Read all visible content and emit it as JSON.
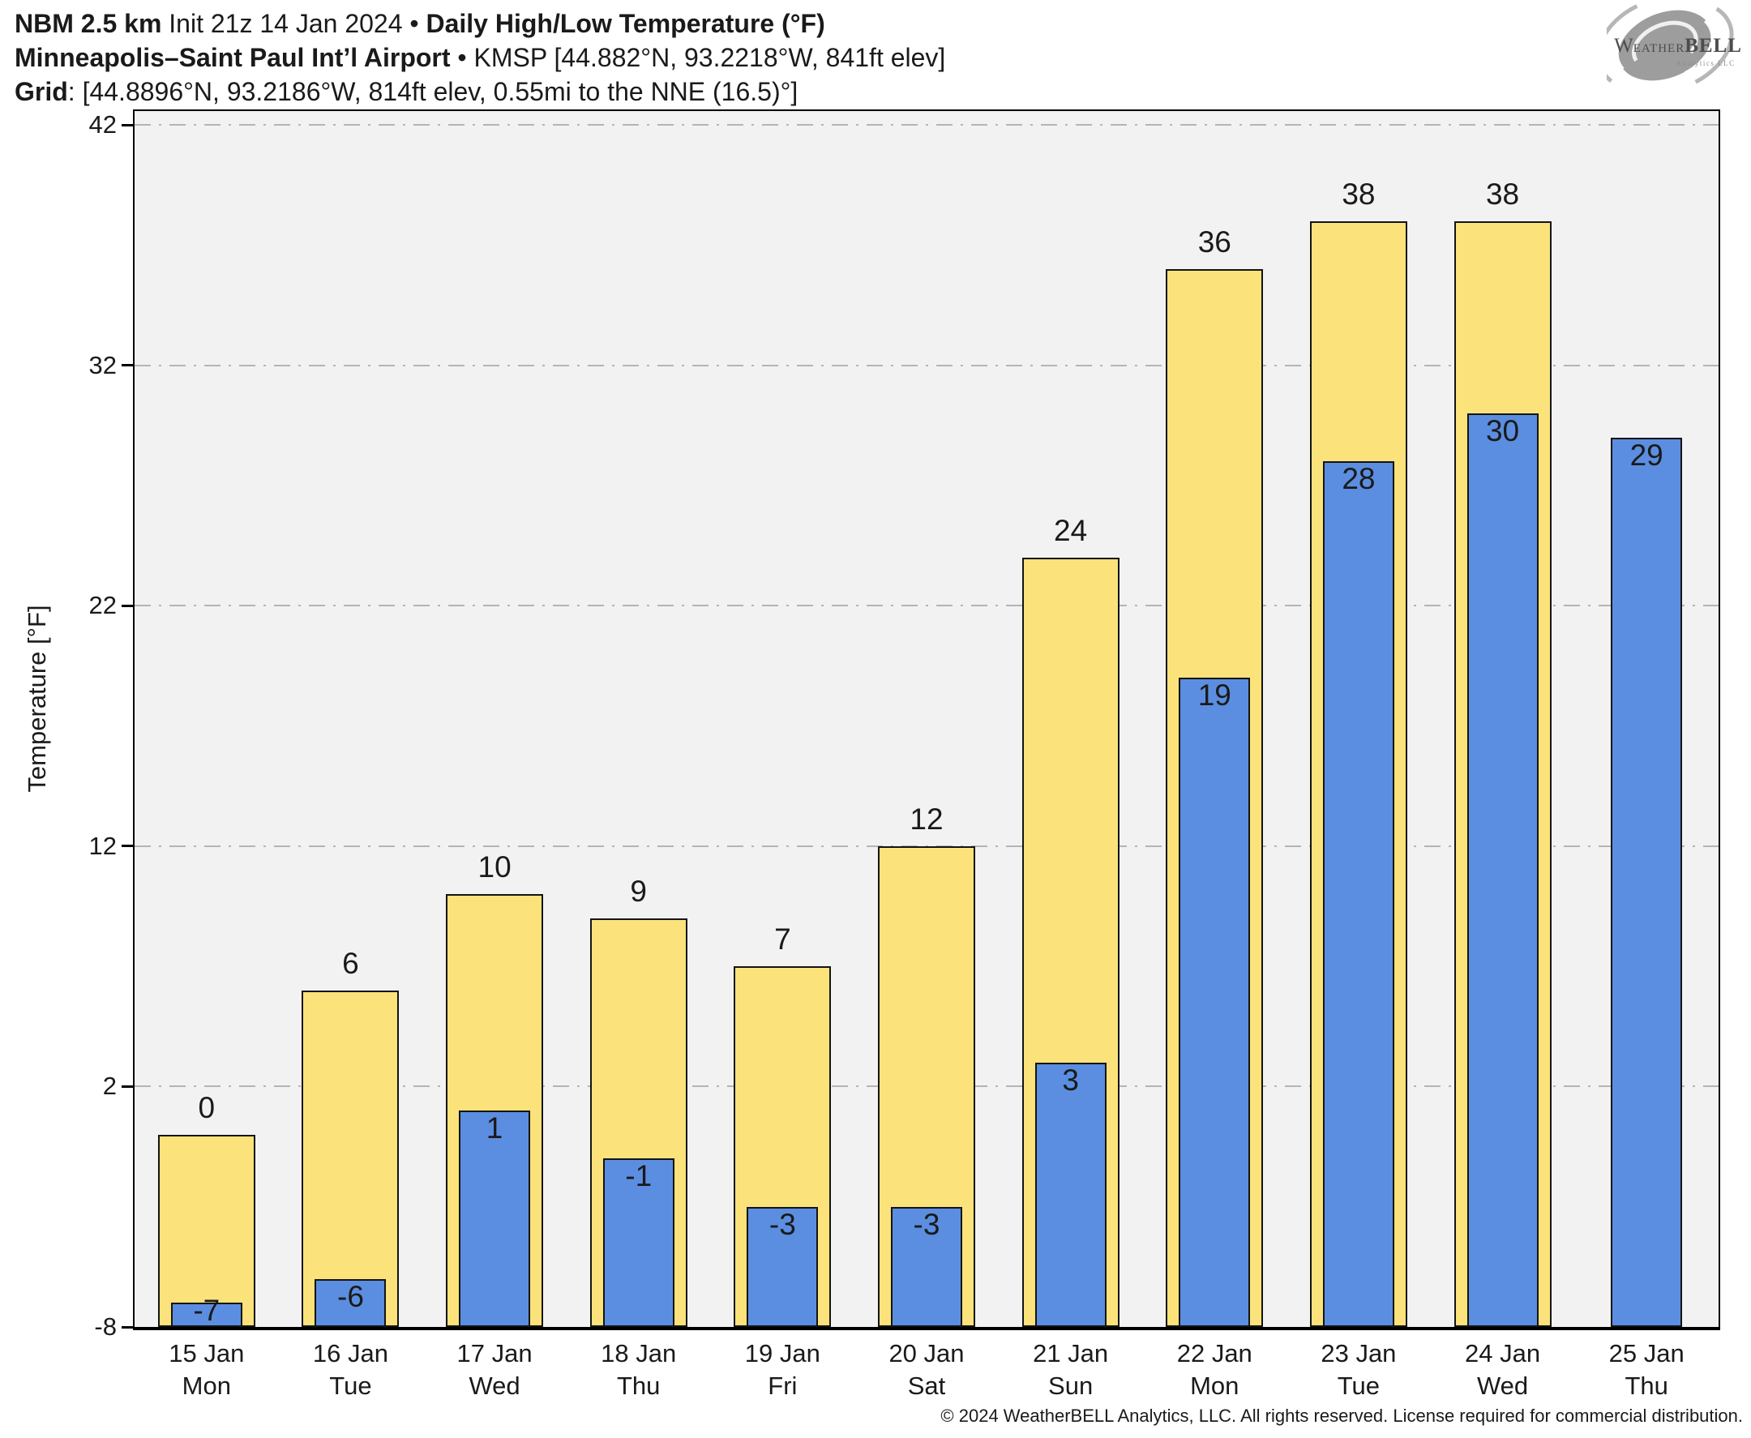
{
  "header": {
    "line1": {
      "model_bold": "NBM 2.5 km",
      "init_regular": " Init 21z 14 Jan 2024 • ",
      "title_bold": "Daily High/Low Temperature (°F)"
    },
    "line2": {
      "station_bold": "Minneapolis–Saint Paul Int’l Airport",
      "station_regular": " • KMSP [44.882°N, 93.2218°W, 841ft elev]"
    },
    "line3": {
      "grid_bold": "Grid",
      "grid_regular": ": [44.8896°N, 93.2186°W, 814ft elev, 0.55mi to the NNE (16.5)°]"
    }
  },
  "logo": {
    "brand_prefix": "W",
    "brand_mid": "EATHER",
    "brand_suffix": "BELL",
    "subtext": "Analytics LLC"
  },
  "footer": {
    "copyright": "© 2024 WeatherBELL Analytics, LLC. All rights reserved. License required for commercial distribution."
  },
  "chart_data": {
    "type": "bar",
    "title": "Daily High/Low Temperature (°F)",
    "ylabel": "Temperature [°F]",
    "ylim": [
      -8,
      42
    ],
    "yticks": [
      42,
      32,
      22,
      12,
      2,
      -8
    ],
    "gridline_yticks": [
      42,
      32,
      22,
      12,
      2
    ],
    "grid_style": "horizontal dash-dot",
    "legend": "none",
    "categories": [
      {
        "date": "15 Jan",
        "day": "Mon"
      },
      {
        "date": "16 Jan",
        "day": "Tue"
      },
      {
        "date": "17 Jan",
        "day": "Wed"
      },
      {
        "date": "18 Jan",
        "day": "Thu"
      },
      {
        "date": "19 Jan",
        "day": "Fri"
      },
      {
        "date": "20 Jan",
        "day": "Sat"
      },
      {
        "date": "21 Jan",
        "day": "Sun"
      },
      {
        "date": "22 Jan",
        "day": "Mon"
      },
      {
        "date": "23 Jan",
        "day": "Tue"
      },
      {
        "date": "24 Jan",
        "day": "Wed"
      },
      {
        "date": "25 Jan",
        "day": "Thu"
      }
    ],
    "series": [
      {
        "name": "High",
        "color": "#fbe27b",
        "values": [
          0,
          6,
          10,
          9,
          7,
          12,
          24,
          36,
          38,
          38,
          null
        ]
      },
      {
        "name": "Low",
        "color": "#5b8ee0",
        "values": [
          -7,
          -6,
          1,
          -1,
          -3,
          -3,
          3,
          19,
          28,
          30,
          29
        ]
      }
    ],
    "colors": {
      "plot_bg": "#f2f2f2",
      "grid": "#b4b4b4",
      "bar_border": "#141414",
      "text": "#1a1a1a"
    }
  }
}
